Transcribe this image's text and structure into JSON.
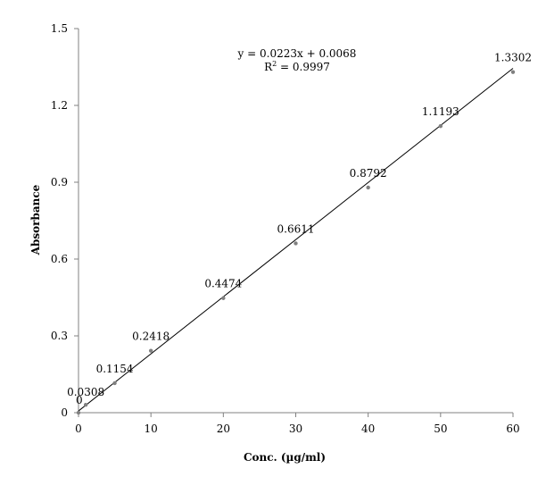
{
  "chart_data": {
    "type": "scatter",
    "title": "",
    "xlabel": "Conc. (µg/ml)",
    "ylabel": "Absorbance",
    "xlim": [
      0,
      60
    ],
    "ylim": [
      0,
      1.5
    ],
    "x_ticks": [
      0,
      10,
      20,
      30,
      40,
      50,
      60
    ],
    "y_ticks": [
      0,
      0.3,
      0.6,
      0.9,
      1.2,
      1.5
    ],
    "x_tick_labels": [
      "0",
      "10",
      "20",
      "30",
      "40",
      "50",
      "60"
    ],
    "y_tick_labels": [
      "0",
      "0.3",
      "0.6",
      "0.9",
      "1.2",
      "1.5"
    ],
    "grid": false,
    "legend": "none",
    "series": [
      {
        "x": [
          0,
          1,
          5,
          10,
          20,
          30,
          40,
          50,
          60
        ],
        "y": [
          0,
          0.0308,
          0.1154,
          0.2418,
          0.4474,
          0.6611,
          0.8792,
          1.1193,
          1.3302
        ],
        "labels": [
          "0",
          "0.0308",
          "0.1154",
          "0.2418",
          "0.4474",
          "0.6611",
          "0.8792",
          "1.1193",
          "1.3302"
        ],
        "color": "#808080"
      }
    ],
    "trendline": {
      "slope": 0.0223,
      "intercept": 0.0068,
      "equation": "y = 0.0223x + 0.0068",
      "r2_prefix": "R",
      "r2_sup": "2",
      "r2_suffix": " = 0.9997",
      "color": "#000000"
    },
    "axis_color": "#808080"
  }
}
